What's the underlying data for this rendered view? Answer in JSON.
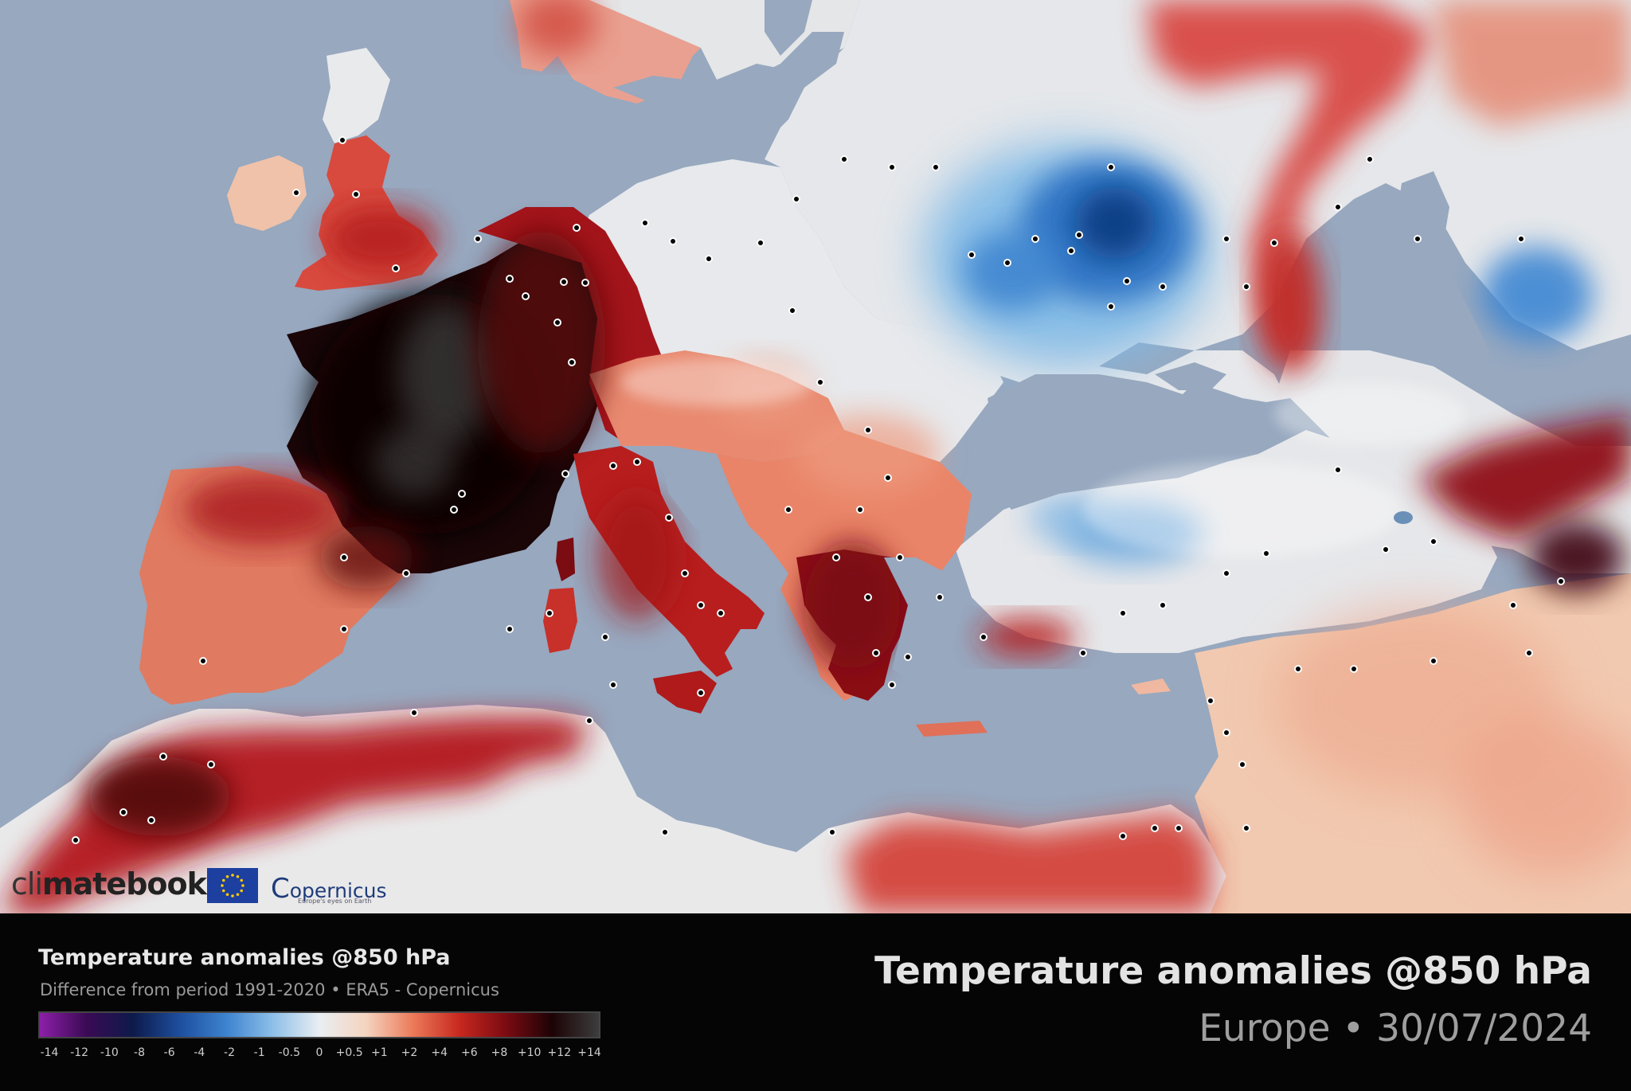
{
  "map": {
    "region": "Europe",
    "sea_color": "#95a7bf",
    "legend_title": "Temperature anomalies @850 hPa",
    "legend_subtitle": "Difference from period 1991-2020 • ERA5 - Copernicus",
    "scale_ticks": [
      "-14",
      "-12",
      "-10",
      "-8",
      "-6",
      "-4",
      "-2",
      "-1",
      "-0.5",
      "0",
      "+0.5",
      "+1",
      "+2",
      "+4",
      "+6",
      "+8",
      "+10",
      "+12",
      "+14"
    ],
    "scale_colors": [
      "#8d1fa8",
      "#3a0a55",
      "#0d1a4a",
      "#1d4e9e",
      "#3d83cf",
      "#8dbfe8",
      "#e9eef2",
      "#f4d4c0",
      "#ec7b5a",
      "#c8281f",
      "#7b0b12",
      "#1c0305",
      "#3c3c3c"
    ]
  },
  "title": {
    "main": "Temperature anomalies @850 hPa",
    "subtitle": "Europe • 30/07/2024"
  },
  "branding": {
    "climatebook_prefix": "cli",
    "climatebook_mid": "mate",
    "climatebook_suffix": "book",
    "copernicus": "opernicus",
    "copernicus_c": "C",
    "copernicus_tagline": "Europe's eyes on Earth"
  }
}
